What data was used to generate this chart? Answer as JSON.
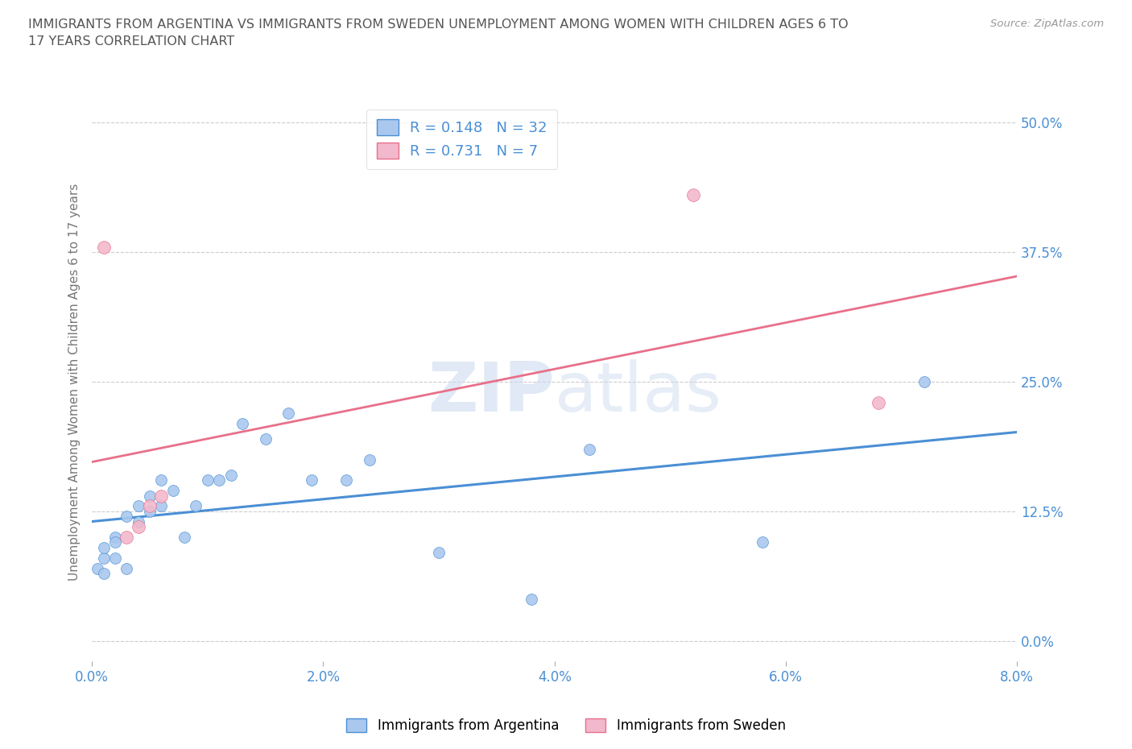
{
  "title": "IMMIGRANTS FROM ARGENTINA VS IMMIGRANTS FROM SWEDEN UNEMPLOYMENT AMONG WOMEN WITH CHILDREN AGES 6 TO\n17 YEARS CORRELATION CHART",
  "source": "Source: ZipAtlas.com",
  "ylabel": "Unemployment Among Women with Children Ages 6 to 17 years",
  "watermark_zip": "ZIP",
  "watermark_atlas": "atlas",
  "legend_argentina": "Immigrants from Argentina",
  "legend_sweden": "Immigrants from Sweden",
  "R_argentina": 0.148,
  "N_argentina": 32,
  "R_sweden": 0.731,
  "N_sweden": 7,
  "argentina_x": [
    0.0005,
    0.001,
    0.001,
    0.001,
    0.002,
    0.002,
    0.002,
    0.003,
    0.003,
    0.004,
    0.004,
    0.005,
    0.005,
    0.006,
    0.006,
    0.007,
    0.008,
    0.009,
    0.01,
    0.011,
    0.012,
    0.013,
    0.015,
    0.017,
    0.019,
    0.022,
    0.024,
    0.03,
    0.038,
    0.043,
    0.058,
    0.072
  ],
  "argentina_y": [
    0.07,
    0.08,
    0.065,
    0.09,
    0.1,
    0.08,
    0.095,
    0.12,
    0.07,
    0.13,
    0.115,
    0.14,
    0.125,
    0.155,
    0.13,
    0.145,
    0.1,
    0.13,
    0.155,
    0.155,
    0.16,
    0.21,
    0.195,
    0.22,
    0.155,
    0.155,
    0.175,
    0.085,
    0.04,
    0.185,
    0.095,
    0.25
  ],
  "sweden_x": [
    0.001,
    0.003,
    0.004,
    0.005,
    0.006,
    0.052,
    0.068
  ],
  "sweden_y": [
    0.38,
    0.1,
    0.11,
    0.13,
    0.14,
    0.43,
    0.23
  ],
  "xlim": [
    0.0,
    0.08
  ],
  "ylim": [
    -0.02,
    0.52
  ],
  "xticks": [
    0.0,
    0.02,
    0.04,
    0.06,
    0.08
  ],
  "yticks": [
    0.0,
    0.125,
    0.25,
    0.375,
    0.5
  ],
  "dot_size_argentina": 100,
  "dot_size_sweden": 130,
  "argentina_color": "#aac8ee",
  "sweden_color": "#f2b8cc",
  "argentina_line_color": "#4a8fd4",
  "sweden_line_color": "#e8708a",
  "grid_color": "#cccccc",
  "title_color": "#555555",
  "tick_color": "#4a8fd4",
  "background_color": "#ffffff"
}
